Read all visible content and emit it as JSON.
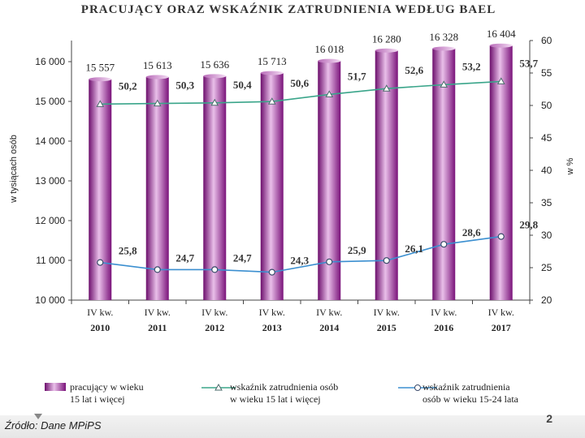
{
  "chart_data": {
    "type": "bar",
    "title": "PRACUJĄCY  ORAZ WSKAŹNIK  ZATRUDNIENIA  WEDŁUG  BAEL",
    "categories": [
      [
        "IV kw.",
        "2010"
      ],
      [
        "IV kw.",
        "2011"
      ],
      [
        "IV kw.",
        "2012"
      ],
      [
        "IV kw.",
        "2013"
      ],
      [
        "IV kw.",
        "2014"
      ],
      [
        "IV kw.",
        "2015"
      ],
      [
        "IV kw.",
        "2016"
      ],
      [
        "IV kw.",
        "2017"
      ]
    ],
    "ylabel_left": "w tysiącach osób",
    "ylabel_right": "w %",
    "ylim_left": [
      10000,
      16000
    ],
    "yticks_left": [
      "10 000",
      "11 000",
      "12 000",
      "13 000",
      "14 000",
      "15 000",
      "16 000"
    ],
    "ylim_right": [
      20,
      60
    ],
    "yticks_right": [
      "20",
      "25",
      "30",
      "35",
      "40",
      "45",
      "50",
      "55",
      "60"
    ],
    "series": [
      {
        "name": "pracujący w wieku\n15 lat i więcej",
        "kind": "bar",
        "axis": "left",
        "values": [
          15557,
          15613,
          15636,
          15713,
          16018,
          16280,
          16328,
          16404
        ],
        "labels": [
          "15 557",
          "15 613",
          "15 636",
          "15 713",
          "16 018",
          "16 280",
          "16 328",
          "16 404"
        ]
      },
      {
        "name": "wskaźnik zatrudnienia osób\nw wieku 15 lat i więcej",
        "kind": "line",
        "marker": "triangle",
        "axis": "right",
        "values": [
          50.2,
          50.3,
          50.4,
          50.6,
          51.7,
          52.6,
          53.2,
          53.7
        ],
        "labels": [
          "50,2",
          "50,3",
          "50,4",
          "50,6",
          "51,7",
          "52,6",
          "53,2",
          "53,7"
        ]
      },
      {
        "name": "wskaźnik zatrudnienia\nosób w wieku 15-24 lata",
        "kind": "line",
        "marker": "circle",
        "axis": "right",
        "values": [
          25.8,
          24.7,
          24.7,
          24.3,
          25.9,
          26.1,
          28.6,
          29.8
        ],
        "labels": [
          "25,8",
          "24,7",
          "24,7",
          "24,3",
          "25,9",
          "26,1",
          "28,6",
          "29,8"
        ]
      }
    ],
    "legend": "bottom",
    "grid": false,
    "colors": {
      "bar": "#8b1c8b",
      "bar_light": "#e6b8e6",
      "line_total": "#3aa58a",
      "line_youth": "#3b8fd0"
    }
  },
  "footer": {
    "source": "Źródło: Dane MPiPS",
    "slide_number": "2"
  }
}
